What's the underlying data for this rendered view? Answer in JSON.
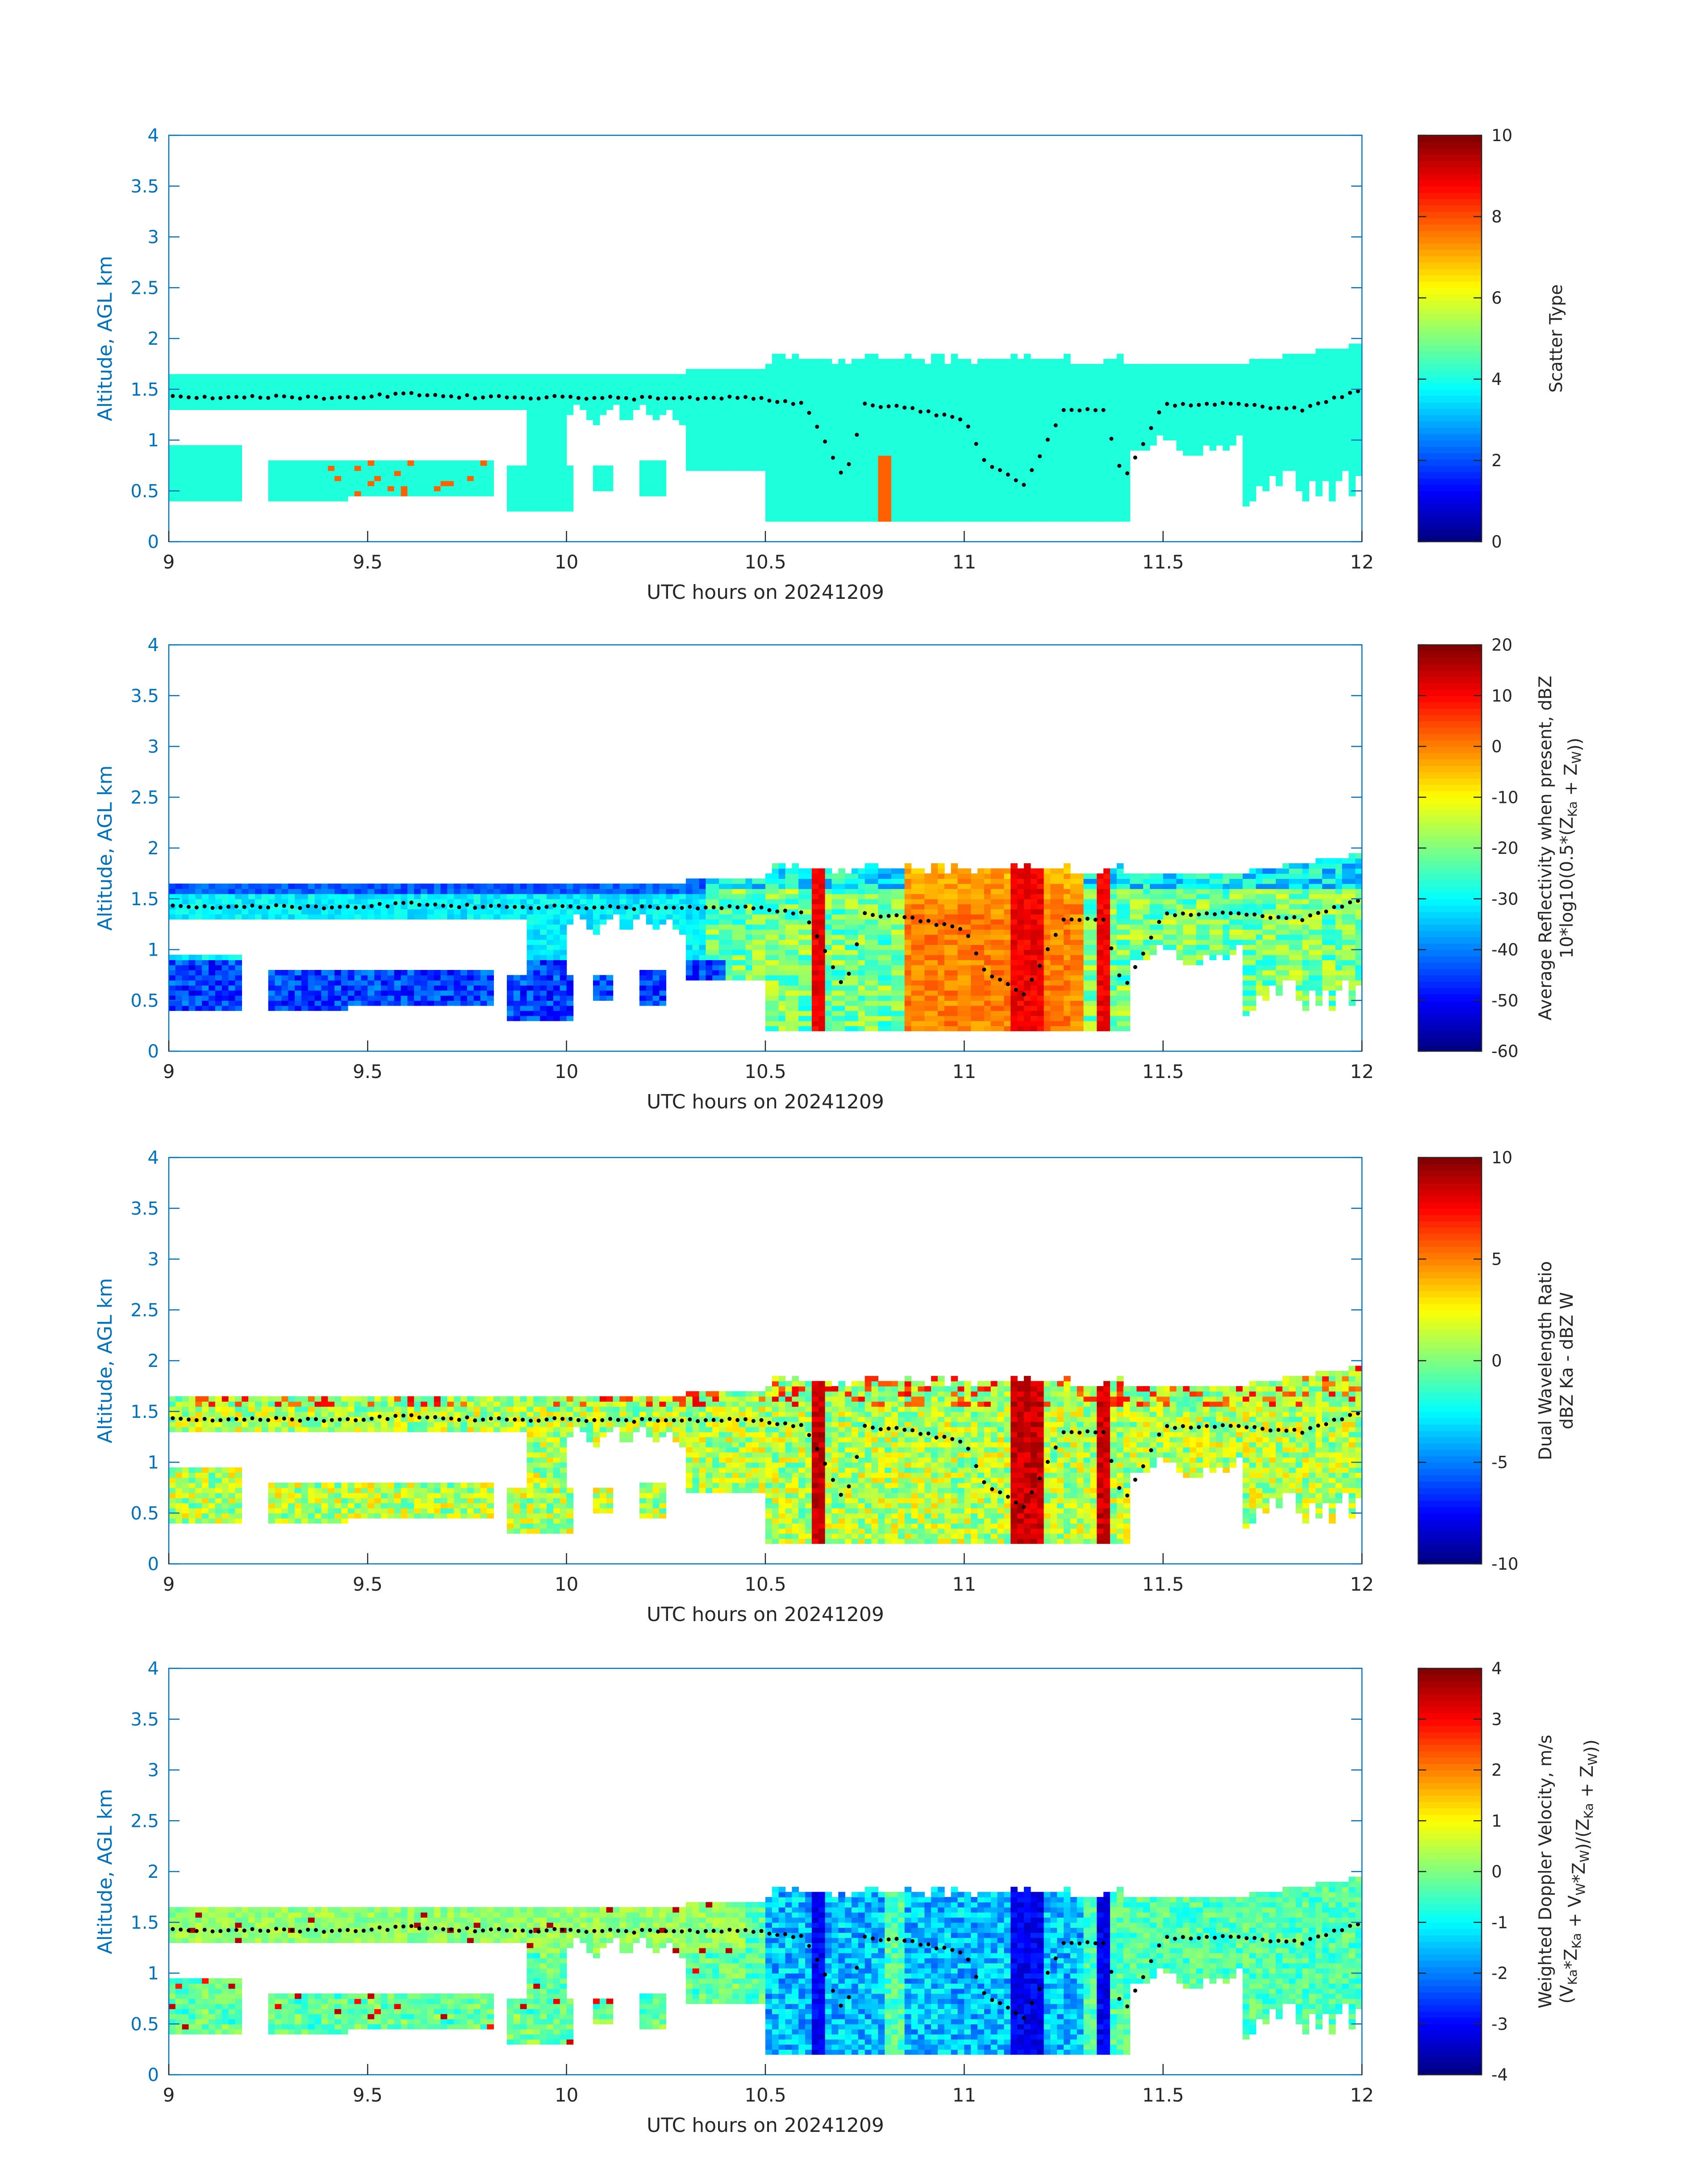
{
  "chart_data": [
    {
      "type": "heatmap",
      "xlabel": "UTC hours on 20241209",
      "ylabel": "Altitude, AGL km",
      "xlim": [
        9,
        12
      ],
      "ylim": [
        0,
        4
      ],
      "xticks": [
        "9",
        "9.5",
        "10",
        "10.5",
        "11",
        "11.5",
        "12"
      ],
      "yticks": [
        "0",
        "0.5",
        "1",
        "1.5",
        "2",
        "2.5",
        "3",
        "3.5",
        "4"
      ],
      "colorbar": {
        "label_lines": [
          "Scatter Type"
        ],
        "range": [
          0,
          10
        ],
        "ticks": [
          "0",
          "2",
          "4",
          "6",
          "8",
          "10"
        ]
      },
      "mode": "scatter_type"
    },
    {
      "type": "heatmap",
      "xlabel": "UTC hours on 20241209",
      "ylabel": "Altitude, AGL km",
      "xlim": [
        9,
        12
      ],
      "ylim": [
        0,
        4
      ],
      "xticks": [
        "9",
        "9.5",
        "10",
        "10.5",
        "11",
        "11.5",
        "12"
      ],
      "yticks": [
        "0",
        "0.5",
        "1",
        "1.5",
        "2",
        "2.5",
        "3",
        "3.5",
        "4"
      ],
      "colorbar": {
        "label_lines": [
          "Average Reflectivity when present, dBZ",
          "10*log10(0.5*(Z_Ka + Z_W))"
        ],
        "range": [
          -60,
          20
        ],
        "ticks": [
          "-60",
          "-50",
          "-40",
          "-30",
          "-20",
          "-10",
          "0",
          "10",
          "20"
        ]
      },
      "mode": "reflectivity"
    },
    {
      "type": "heatmap",
      "xlabel": "UTC hours on 20241209",
      "ylabel": "Altitude, AGL km",
      "xlim": [
        9,
        12
      ],
      "ylim": [
        0,
        4
      ],
      "xticks": [
        "9",
        "9.5",
        "10",
        "10.5",
        "11",
        "11.5",
        "12"
      ],
      "yticks": [
        "0",
        "0.5",
        "1",
        "1.5",
        "2",
        "2.5",
        "3",
        "3.5",
        "4"
      ],
      "colorbar": {
        "label_lines": [
          "Dual Wavelength Ratio",
          "dBZ Ka - dBZ W"
        ],
        "range": [
          -10,
          10
        ],
        "ticks": [
          "-10",
          "-5",
          "0",
          "5",
          "10"
        ]
      },
      "mode": "dwr"
    },
    {
      "type": "heatmap",
      "xlabel": "UTC hours on 20241209",
      "ylabel": "Altitude, AGL km",
      "xlim": [
        9,
        12
      ],
      "ylim": [
        0,
        4
      ],
      "xticks": [
        "9",
        "9.5",
        "10",
        "10.5",
        "11",
        "11.5",
        "12"
      ],
      "yticks": [
        "0",
        "0.5",
        "1",
        "1.5",
        "2",
        "2.5",
        "3",
        "3.5",
        "4"
      ],
      "colorbar": {
        "label_lines": [
          "Weighted Doppler Velocity, m/s",
          "(V_Ka*Z_Ka + V_W*Z_W)/(Z_Ka + Z_W))"
        ],
        "range": [
          -4,
          4
        ],
        "ticks": [
          "-4",
          "-3",
          "-2",
          "-1",
          "0",
          "1",
          "2",
          "3",
          "4"
        ]
      },
      "mode": "velocity"
    }
  ],
  "colors": {
    "axis_text": "#0072BD",
    "tick_text": "#262626",
    "colormap": "jet",
    "scatter_fill": "#1EFFDC",
    "cloud_base_dots": "#000000"
  }
}
